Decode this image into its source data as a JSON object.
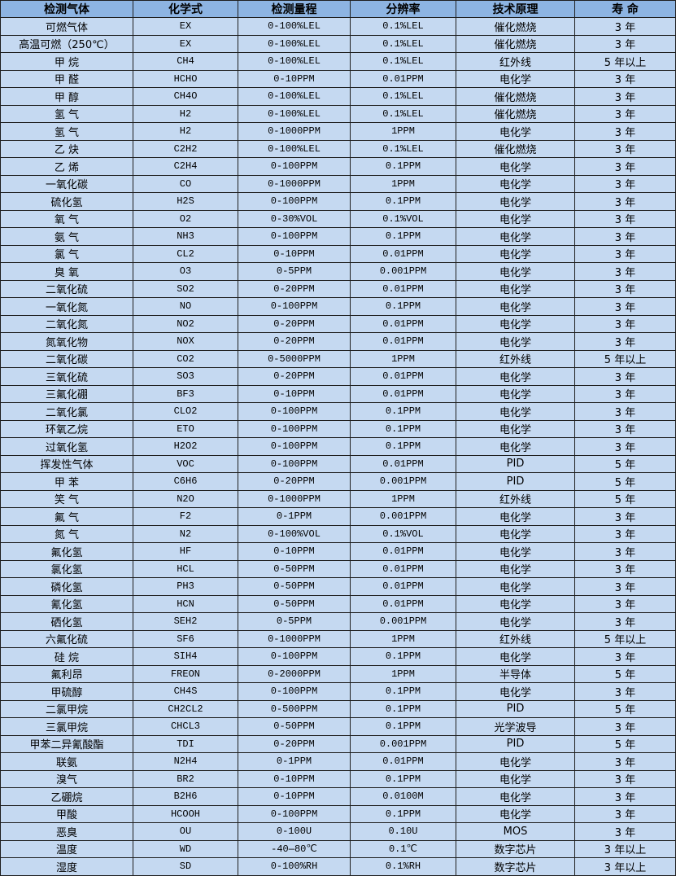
{
  "colors": {
    "header_bg": "#8db4e2",
    "row_bg": "#c5d9f1",
    "border": "#1f1f1f"
  },
  "headers": [
    "检测气体",
    "化学式",
    "检测量程",
    "分辨率",
    "技术原理",
    "寿 命"
  ],
  "rows": [
    [
      "可燃气体",
      "EX",
      "0-100%LEL",
      "0.1%LEL",
      "催化燃烧",
      "3 年"
    ],
    [
      "高温可燃（250℃）",
      "EX",
      "0-100%LEL",
      "0.1%LEL",
      "催化燃烧",
      "3 年"
    ],
    [
      "甲 烷",
      "CH4",
      "0-100%LEL",
      "0.1%LEL",
      "红外线",
      "5 年以上"
    ],
    [
      "甲 醛",
      "HCHO",
      "0-10PPM",
      "0.01PPM",
      "电化学",
      "3 年"
    ],
    [
      "甲 醇",
      "CH4O",
      "0-100%LEL",
      "0.1%LEL",
      "催化燃烧",
      "3 年"
    ],
    [
      "氢 气",
      "H2",
      "0-100%LEL",
      "0.1%LEL",
      "催化燃烧",
      "3 年"
    ],
    [
      "氢 气",
      "H2",
      "0-1000PPM",
      "1PPM",
      "电化学",
      "3 年"
    ],
    [
      "乙 炔",
      "C2H2",
      "0-100%LEL",
      "0.1%LEL",
      "催化燃烧",
      "3 年"
    ],
    [
      "乙 烯",
      "C2H4",
      "0-100PPM",
      "0.1PPM",
      "电化学",
      "3 年"
    ],
    [
      "一氧化碳",
      "CO",
      "0-1000PPM",
      "1PPM",
      "电化学",
      "3 年"
    ],
    [
      "硫化氢",
      "H2S",
      "0-100PPM",
      "0.1PPM",
      "电化学",
      "3 年"
    ],
    [
      "氧 气",
      "O2",
      "0-30%VOL",
      "0.1%VOL",
      "电化学",
      "3 年"
    ],
    [
      "氨 气",
      "NH3",
      "0-100PPM",
      "0.1PPM",
      "电化学",
      "3 年"
    ],
    [
      "氯 气",
      "CL2",
      "0-10PPM",
      "0.01PPM",
      "电化学",
      "3 年"
    ],
    [
      "臭 氧",
      "O3",
      "0-5PPM",
      "0.001PPM",
      "电化学",
      "3 年"
    ],
    [
      "二氧化硫",
      "SO2",
      "0-20PPM",
      "0.01PPM",
      "电化学",
      "3 年"
    ],
    [
      "一氧化氮",
      "NO",
      "0-100PPM",
      "0.1PPM",
      "电化学",
      "3 年"
    ],
    [
      "二氧化氮",
      "NO2",
      "0-20PPM",
      "0.01PPM",
      "电化学",
      "3 年"
    ],
    [
      "氮氧化物",
      "NOX",
      "0-20PPM",
      "0.01PPM",
      "电化学",
      "3 年"
    ],
    [
      "二氧化碳",
      "CO2",
      "0-5000PPM",
      "1PPM",
      "红外线",
      "5 年以上"
    ],
    [
      "三氧化硫",
      "SO3",
      "0-20PPM",
      "0.01PPM",
      "电化学",
      "3 年"
    ],
    [
      "三氟化硼",
      "BF3",
      "0-10PPM",
      "0.01PPM",
      "电化学",
      "3 年"
    ],
    [
      "二氧化氯",
      "CLO2",
      "0-100PPM",
      "0.1PPM",
      "电化学",
      "3 年"
    ],
    [
      "环氧乙烷",
      "ETO",
      "0-100PPM",
      "0.1PPM",
      "电化学",
      "3 年"
    ],
    [
      "过氧化氢",
      "H2O2",
      "0-100PPM",
      "0.1PPM",
      "电化学",
      "3 年"
    ],
    [
      "挥发性气体",
      "VOC",
      "0-100PPM",
      "0.01PPM",
      "PID",
      "5 年"
    ],
    [
      "甲 苯",
      "C6H6",
      "0-20PPM",
      "0.001PPM",
      "PID",
      "5 年"
    ],
    [
      "笑 气",
      "N2O",
      "0-1000PPM",
      "1PPM",
      "红外线",
      "5 年"
    ],
    [
      "氟 气",
      "F2",
      "0-1PPM",
      "0.001PPM",
      "电化学",
      "3 年"
    ],
    [
      "氮 气",
      "N2",
      "0-100%VOL",
      "0.1%VOL",
      "电化学",
      "3 年"
    ],
    [
      "氟化氢",
      "HF",
      "0-10PPM",
      "0.01PPM",
      "电化学",
      "3 年"
    ],
    [
      "氯化氢",
      "HCL",
      "0-50PPM",
      "0.01PPM",
      "电化学",
      "3 年"
    ],
    [
      "磷化氢",
      "PH3",
      "0-50PPM",
      "0.01PPM",
      "电化学",
      "3 年"
    ],
    [
      "氰化氢",
      "HCN",
      "0-50PPM",
      "0.01PPM",
      "电化学",
      "3 年"
    ],
    [
      "硒化氢",
      "SEH2",
      "0-5PPM",
      "0.001PPM",
      "电化学",
      "3 年"
    ],
    [
      "六氟化硫",
      "SF6",
      "0-1000PPM",
      "1PPM",
      "红外线",
      "5 年以上"
    ],
    [
      "硅 烷",
      "SIH4",
      "0-100PPM",
      "0.1PPM",
      "电化学",
      "3 年"
    ],
    [
      "氟利昂",
      "FREON",
      "0-2000PPM",
      "1PPM",
      "半导体",
      "5 年"
    ],
    [
      "甲硫醇",
      "CH4S",
      "0-100PPM",
      "0.1PPM",
      "电化学",
      "3 年"
    ],
    [
      "二氯甲烷",
      "CH2CL2",
      "0-500PPM",
      "0.1PPM",
      "PID",
      "5 年"
    ],
    [
      "三氯甲烷",
      "CHCL3",
      "0-50PPM",
      "0.1PPM",
      "光学波导",
      "3 年"
    ],
    [
      "甲苯二异氰酸酯",
      "TDI",
      "0-20PPM",
      "0.001PPM",
      "PID",
      "5 年"
    ],
    [
      "联氨",
      "N2H4",
      "0-1PPM",
      "0.01PPM",
      "电化学",
      "3 年"
    ],
    [
      "溴气",
      "BR2",
      "0-10PPM",
      "0.1PPM",
      "电化学",
      "3 年"
    ],
    [
      "乙硼烷",
      "B2H6",
      "0-10PPM",
      "0.0100M",
      "电化学",
      "3 年"
    ],
    [
      "甲酸",
      "HCOOH",
      "0-100PPM",
      "0.1PPM",
      "电化学",
      "3 年"
    ],
    [
      "恶臭",
      "OU",
      "0-100U",
      "0.10U",
      "MOS",
      "3 年"
    ],
    [
      "温度",
      "WD",
      "-40—80℃",
      "0.1℃",
      "数字芯片",
      "3 年以上"
    ],
    [
      "湿度",
      "SD",
      "0-100%RH",
      "0.1%RH",
      "数字芯片",
      "3 年以上"
    ]
  ]
}
